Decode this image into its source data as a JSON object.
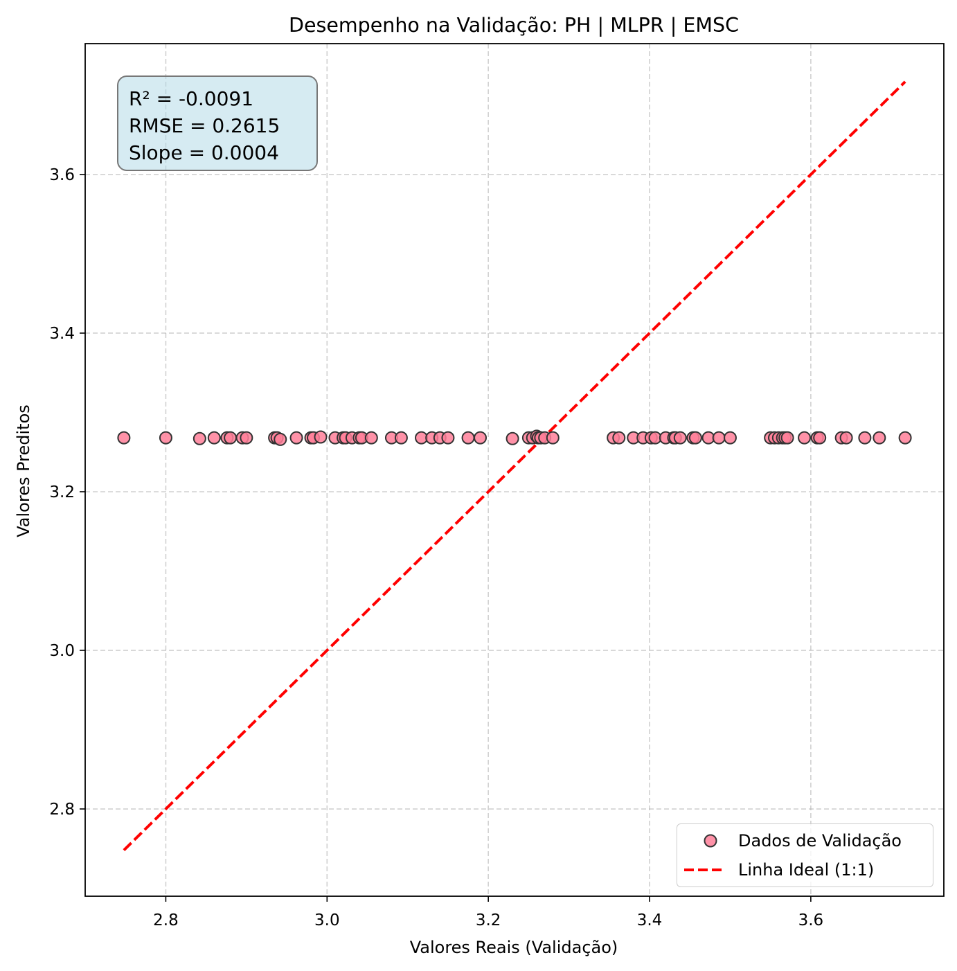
{
  "chart_data": {
    "type": "scatter",
    "title": "Desempenho na Validação: PH | MLPR | EMSC",
    "xlabel": "Valores Reais (Validação)",
    "ylabel": "Valores Preditos",
    "xlim": [
      2.7,
      3.765
    ],
    "ylim": [
      2.69,
      3.765
    ],
    "xticks": [
      "2.8",
      "3.0",
      "3.2",
      "3.4",
      "3.6"
    ],
    "yticks": [
      "2.8",
      "3.0",
      "3.2",
      "3.4",
      "3.6"
    ],
    "grid": true,
    "legend_position": "lower-right",
    "stats": [
      "R² = -0.0091",
      "RMSE = 0.2615",
      "Slope = 0.0004"
    ],
    "series": [
      {
        "name": "Dados de Validação",
        "kind": "scatter",
        "color": "#ff7f99",
        "edge_color": "#333333",
        "x": [
          2.748,
          2.8,
          2.842,
          2.86,
          2.876,
          2.88,
          2.895,
          2.9,
          2.935,
          2.938,
          2.942,
          2.962,
          2.98,
          2.983,
          2.992,
          3.01,
          3.02,
          3.023,
          3.031,
          3.04,
          3.043,
          3.055,
          3.08,
          3.092,
          3.117,
          3.13,
          3.14,
          3.15,
          3.175,
          3.19,
          3.23,
          3.25,
          3.255,
          3.26,
          3.262,
          3.265,
          3.27,
          3.28,
          3.355,
          3.362,
          3.38,
          3.392,
          3.402,
          3.407,
          3.42,
          3.43,
          3.432,
          3.438,
          3.454,
          3.457,
          3.473,
          3.486,
          3.5,
          3.55,
          3.555,
          3.56,
          3.565,
          3.568,
          3.571,
          3.592,
          3.608,
          3.611,
          3.638,
          3.644,
          3.667,
          3.685,
          3.717
        ],
        "y": [
          3.268,
          3.268,
          3.267,
          3.268,
          3.268,
          3.268,
          3.268,
          3.268,
          3.268,
          3.268,
          3.266,
          3.268,
          3.268,
          3.268,
          3.269,
          3.268,
          3.268,
          3.268,
          3.268,
          3.268,
          3.268,
          3.268,
          3.268,
          3.268,
          3.268,
          3.268,
          3.268,
          3.268,
          3.268,
          3.268,
          3.267,
          3.268,
          3.268,
          3.27,
          3.268,
          3.268,
          3.268,
          3.268,
          3.268,
          3.268,
          3.268,
          3.268,
          3.268,
          3.268,
          3.268,
          3.268,
          3.268,
          3.268,
          3.268,
          3.268,
          3.268,
          3.268,
          3.268,
          3.268,
          3.268,
          3.268,
          3.268,
          3.268,
          3.268,
          3.268,
          3.268,
          3.268,
          3.268,
          3.268,
          3.268,
          3.268,
          3.268
        ]
      },
      {
        "name": "Linha Ideal (1:1)",
        "kind": "line",
        "style": "dashed",
        "color": "#ff0000",
        "x": [
          2.748,
          3.717
        ],
        "y": [
          2.748,
          3.717
        ]
      }
    ]
  }
}
